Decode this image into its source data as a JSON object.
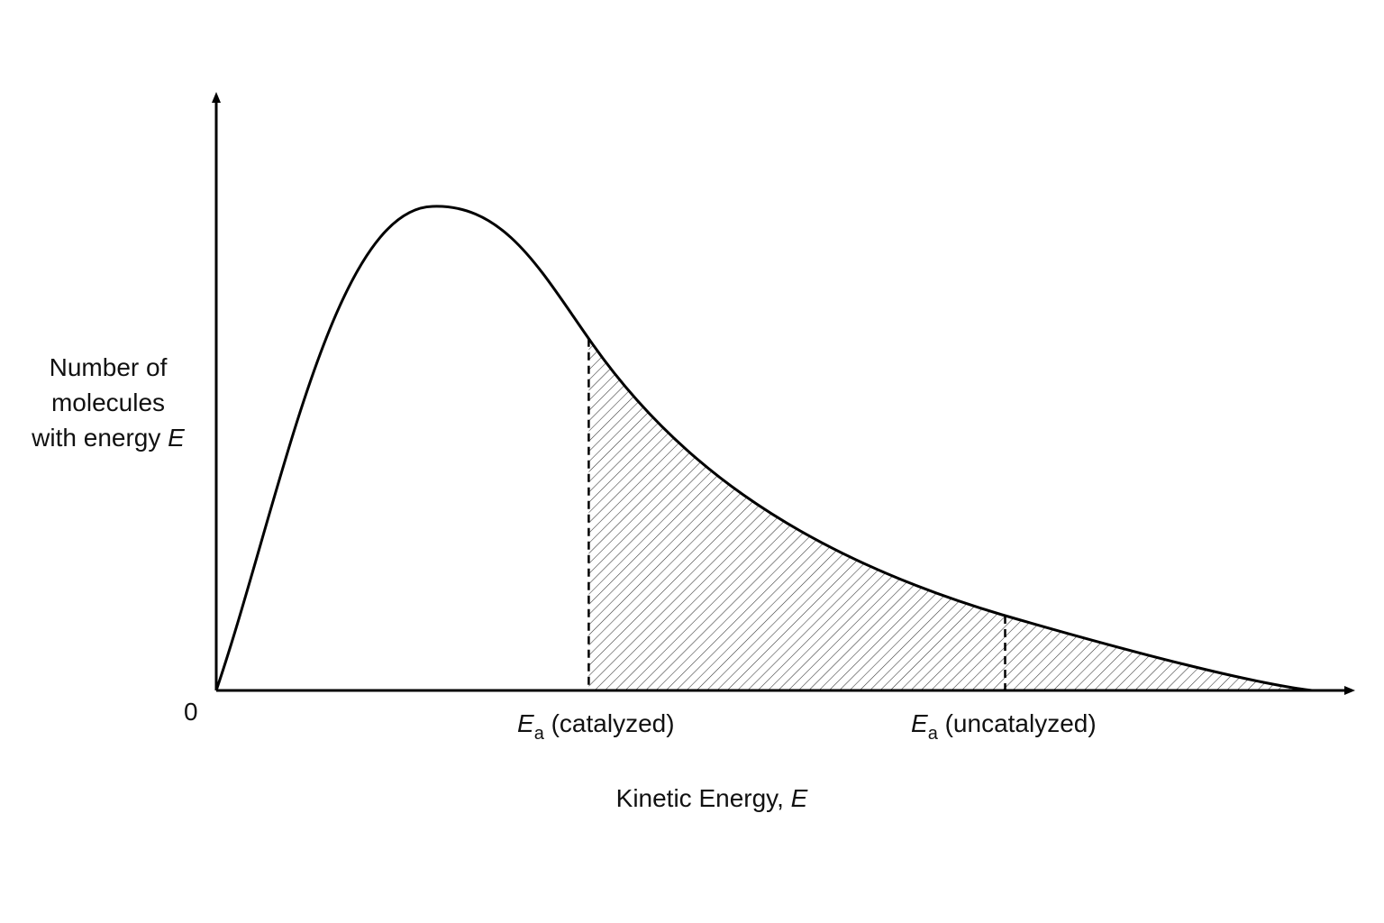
{
  "diagram": {
    "y_axis_label": {
      "lines": [
        "Number of",
        "molecules",
        "with energy "
      ],
      "variable": "E"
    },
    "x_axis_label": {
      "text": "Kinetic Energy, ",
      "variable": "E"
    },
    "origin_label": "0",
    "markers": {
      "catalyzed": {
        "symbol": "E",
        "subscript": "a",
        "label": "(catalyzed)",
        "energy": 0.34
      },
      "uncatalyzed": {
        "symbol": "E",
        "subscript": "a",
        "label": "(uncatalyzed)",
        "energy": 0.72
      }
    },
    "shaded_region": "area under curve beyond Ea (catalyzed)",
    "colors": {
      "line": "#000000",
      "hatch": "#333333",
      "background": "#ffffff"
    }
  }
}
